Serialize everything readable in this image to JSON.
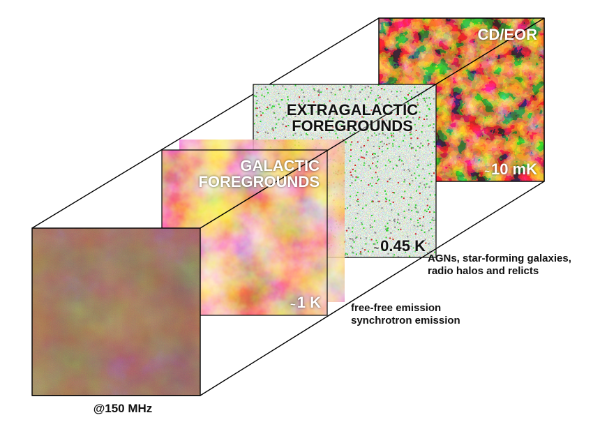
{
  "frequency_label": "@150 MHz",
  "layers": [
    {
      "id": "observed-sky",
      "colors": [
        "#9c3a2a",
        "#b86a3e",
        "#6a4a32",
        "#c9a0a0"
      ]
    },
    {
      "id": "galactic",
      "title_line1": "GALACTIC",
      "title_line2": "FOREGROUNDS",
      "temperature": "1 K",
      "tilde": "~",
      "caption_line1": "free-free emission",
      "caption_line2": "synchrotron emission",
      "colors": [
        "#7a1008",
        "#c0401a",
        "#f08a4a",
        "#ffe8d8"
      ]
    },
    {
      "id": "extragalactic",
      "title_line1": "EXTRAGALACTIC",
      "title_line2": "FOREGROUNDS",
      "temperature": "0.45 K",
      "tilde": "~",
      "caption_line1": "AGNs, star-forming galaxies,",
      "caption_line2": "radio halos and relicts",
      "colors": [
        "#30d030",
        "#cc2222",
        "#888888",
        "#ffffff"
      ]
    },
    {
      "id": "cd-eor",
      "title_line1": "CD/EOR",
      "temperature": "10 mK",
      "tilde": "~",
      "colors": [
        "#120404",
        "#7a2406",
        "#e07020",
        "#ffd080"
      ]
    }
  ]
}
